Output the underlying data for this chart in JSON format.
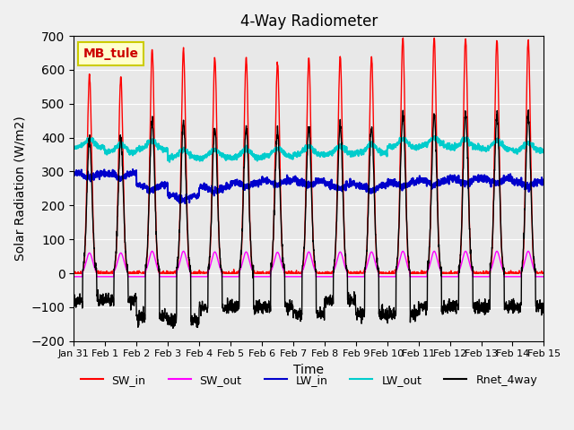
{
  "title": "4-Way Radiometer",
  "xlabel": "Time",
  "ylabel": "Solar Radiation (W/m2)",
  "ylim": [
    -200,
    700
  ],
  "yticks": [
    -200,
    -100,
    0,
    100,
    200,
    300,
    400,
    500,
    600,
    700
  ],
  "xlim_start": 0,
  "xlim_end": 15,
  "xtick_labels": [
    "Jan 31",
    "Feb 1",
    "Feb 2",
    "Feb 3",
    "Feb 4",
    "Feb 5",
    "Feb 6",
    "Feb 7",
    "Feb 8",
    "Feb 9",
    "Feb 10",
    "Feb 11",
    "Feb 12",
    "Feb 13",
    "Feb 14",
    "Feb 15"
  ],
  "colors": {
    "SW_in": "#ff0000",
    "SW_out": "#ff00ff",
    "LW_in": "#0000cc",
    "LW_out": "#00cccc",
    "Rnet_4way": "#000000"
  },
  "legend_labels": [
    "SW_in",
    "SW_out",
    "LW_in",
    "LW_out",
    "Rnet_4way"
  ],
  "station_label": "MB_tule",
  "station_label_color": "#cc0000",
  "station_box_facecolor": "#ffffcc",
  "station_box_edgecolor": "#cccc00",
  "background_color": "#e8e8e8",
  "grid_color": "#ffffff",
  "n_days": 15,
  "pts_per_day": 144,
  "sw_peaks": [
    585,
    580,
    660,
    660,
    635,
    635,
    620,
    635,
    640,
    640,
    695,
    695,
    695,
    690,
    690
  ],
  "sw_out_peaks": [
    60,
    60,
    65,
    65,
    63,
    63,
    62,
    63,
    63,
    63,
    65,
    65,
    65,
    65,
    65
  ],
  "lw_in_base": [
    295,
    295,
    260,
    230,
    255,
    270,
    275,
    275,
    265,
    260,
    270,
    275,
    280,
    280,
    270
  ],
  "lw_out_base": [
    370,
    355,
    365,
    340,
    340,
    340,
    345,
    350,
    350,
    355,
    370,
    375,
    370,
    365,
    360
  ],
  "rnet_night": [
    -80,
    -80,
    -130,
    -140,
    -100,
    -100,
    -100,
    -120,
    -80,
    -120,
    -120,
    -100,
    -100,
    -100,
    -100
  ]
}
